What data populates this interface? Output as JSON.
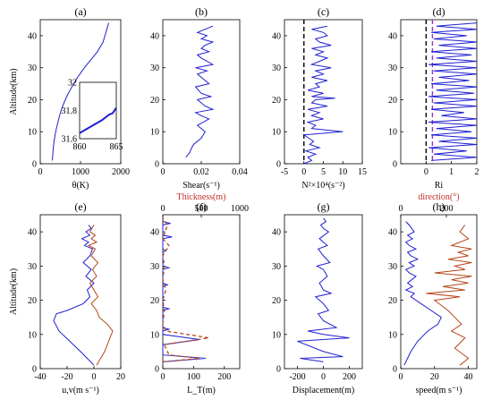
{
  "colors": {
    "blue": "#1f1fd2",
    "brown": "#b5451b",
    "red_label": "#c0302b",
    "purple": "#9b30d9",
    "black": "#000000"
  },
  "chart_data": [
    {
      "id": "a",
      "panel_label": "(a)",
      "type": "line",
      "xlabel": "θ(K)",
      "ylabel": "Altitude(km)",
      "xlim": [
        0,
        2000
      ],
      "ylim": [
        0,
        45
      ],
      "xticks": [
        "0",
        "1000",
        "2000"
      ],
      "yticks": [
        "0",
        "10",
        "20",
        "30",
        "40"
      ],
      "series": [
        {
          "x": [
            300,
            310,
            325,
            345,
            370,
            400,
            440,
            480,
            530,
            590,
            660,
            740,
            830,
            930,
            1040,
            1160,
            1290,
            1420,
            1560,
            1700
          ],
          "y": [
            1,
            3,
            5,
            7,
            9,
            11,
            13,
            15,
            17,
            19,
            21,
            23,
            25,
            27,
            29,
            31,
            33,
            35,
            38,
            44
          ]
        }
      ],
      "inset": {
        "xlim": [
          860,
          865
        ],
        "ylim": [
          31.6,
          32
        ],
        "xticks": [
          "860",
          "865"
        ],
        "yticks": [
          "31.6",
          "31.8",
          "32"
        ],
        "series": [
          {
            "x": [
              860,
              861,
              862,
              863,
              863.5,
              864,
              864.5,
              865
            ],
            "y": [
              31.64,
              31.67,
              31.7,
              31.73,
              31.75,
              31.77,
              31.78,
              31.82
            ]
          }
        ]
      }
    },
    {
      "id": "b",
      "panel_label": "(b)",
      "type": "line",
      "xlabel": "Shear(s⁻¹)",
      "ylabel": "",
      "xlim": [
        0,
        0.04
      ],
      "ylim": [
        0,
        45
      ],
      "xticks": [
        "0",
        "0.02",
        "0.04"
      ],
      "yticks": [
        "0",
        "10",
        "20",
        "30",
        "40"
      ],
      "top_xlabel": "Thickness(m)",
      "series": [
        {
          "x": [
            0.012,
            0.014,
            0.015,
            0.016,
            0.02,
            0.022,
            0.018,
            0.024,
            0.02,
            0.017,
            0.026,
            0.022,
            0.018,
            0.025,
            0.02,
            0.017,
            0.024,
            0.02,
            0.018,
            0.023,
            0.017,
            0.026,
            0.02,
            0.018,
            0.024,
            0.02,
            0.022,
            0.026,
            0.02,
            0.023,
            0.018,
            0.022,
            0.026
          ],
          "y": [
            2,
            3.5,
            5,
            6,
            8,
            10,
            12,
            14,
            15,
            16,
            17,
            18,
            20,
            21,
            22,
            24,
            25,
            27,
            28,
            29,
            30,
            31,
            33,
            34,
            35,
            36,
            37,
            38,
            39,
            40,
            41,
            42,
            43
          ]
        }
      ]
    },
    {
      "id": "c",
      "panel_label": "(c)",
      "type": "line",
      "xlabel": "N²×10⁴(s⁻²)",
      "ylabel": "",
      "xlim": [
        -5,
        15
      ],
      "ylim": [
        0,
        45
      ],
      "xticks": [
        "-5",
        "0",
        "5",
        "10",
        "15"
      ],
      "yticks": [
        "0",
        "10",
        "20",
        "30",
        "40"
      ],
      "reference_line_x": 0,
      "series": [
        {
          "x": [
            0,
            2,
            1,
            3,
            0.5,
            4,
            1.5,
            2.5,
            0,
            10,
            2,
            3,
            1,
            5,
            2,
            4,
            1,
            6,
            2,
            3,
            8,
            2,
            5,
            1,
            4,
            3,
            6,
            2,
            5,
            3,
            7,
            2,
            4,
            6,
            3,
            5,
            2,
            7,
            4,
            3,
            6,
            5,
            2,
            6
          ],
          "y": [
            0,
            1,
            2,
            3,
            4,
            5,
            6,
            7,
            9,
            10,
            11,
            12,
            13,
            14,
            15,
            16,
            17,
            18,
            19,
            20,
            20.5,
            21,
            22,
            23,
            24,
            25,
            26,
            27,
            28,
            29,
            30,
            31,
            32,
            33,
            34,
            35,
            36,
            37,
            38,
            39,
            40,
            41,
            42,
            43
          ]
        }
      ]
    },
    {
      "id": "d",
      "panel_label": "(d)",
      "type": "line",
      "xlabel": "Ri",
      "ylabel": "",
      "xlim": [
        -1,
        2
      ],
      "ylim": [
        0,
        45
      ],
      "xticks": [
        "0",
        "1",
        "2"
      ],
      "yticks": [
        "0",
        "10",
        "20",
        "30",
        "40"
      ],
      "top_xlabel": "direction(°)",
      "reference_lines_x": [
        0,
        0.25
      ],
      "series": [
        {
          "x": [
            0.2,
            2,
            0.3,
            1.6,
            0.1,
            2,
            0.5,
            2,
            0.2,
            1.8,
            0.4,
            2,
            0.1,
            2,
            0.6,
            1.5,
            0.2,
            2,
            0.3,
            2,
            0.1,
            1.9,
            0.4,
            2,
            0.2,
            1.7,
            0.5,
            2,
            0.3,
            2,
            0.1,
            2,
            0.4,
            1.8,
            0.2,
            2,
            0.5,
            2,
            0.3,
            1.6,
            0.2,
            2,
            0.4,
            2
          ],
          "y": [
            1,
            2,
            3,
            4,
            5,
            6,
            7,
            8,
            9,
            10,
            11,
            12,
            13,
            14,
            15,
            16,
            17,
            18,
            19,
            20,
            21,
            22,
            23,
            24,
            25,
            26,
            27,
            28,
            29,
            30,
            31,
            32,
            33,
            34,
            35,
            36,
            37,
            38,
            39,
            40,
            41,
            42,
            43,
            44
          ]
        }
      ]
    },
    {
      "id": "e",
      "panel_label": "(e)",
      "type": "line",
      "xlabel": "u,v(m s⁻¹)",
      "ylabel": "Altitude(km)",
      "xlim": [
        -40,
        20
      ],
      "ylim": [
        0,
        45
      ],
      "xticks": [
        "-40",
        "-20",
        "0",
        "20"
      ],
      "yticks": [
        "0",
        "10",
        "20",
        "30",
        "40"
      ],
      "series": [
        {
          "name": "u",
          "x": [
            0,
            -5,
            -10,
            -18,
            -26,
            -30,
            -28,
            -20,
            -8,
            -3,
            -5,
            0,
            -6,
            -2,
            -8,
            -3,
            -1,
            -7,
            -4,
            -9,
            -3,
            -6,
            -2,
            -4
          ],
          "y": [
            1,
            3,
            5,
            8,
            11,
            14,
            16,
            17,
            19,
            21,
            23,
            25,
            27,
            29,
            31,
            33,
            35,
            36,
            37,
            38,
            39,
            40,
            41,
            42
          ]
        },
        {
          "name": "v",
          "x": [
            2,
            5,
            8,
            10,
            12,
            14,
            10,
            4,
            2,
            -2,
            3,
            0,
            -3,
            2,
            -1,
            3,
            -2,
            1,
            -4,
            2,
            -2,
            1,
            -3,
            0
          ],
          "y": [
            1,
            3,
            5,
            7,
            9,
            11,
            13,
            15,
            17,
            19,
            21,
            23,
            25,
            27,
            29,
            31,
            33,
            35,
            36,
            37,
            38,
            39,
            40,
            42
          ]
        }
      ]
    },
    {
      "id": "f",
      "panel_label": "(f)",
      "type": "line",
      "xlabel": "L_T(m)",
      "ylabel": "",
      "xlim": [
        0,
        250
      ],
      "ylim": [
        0,
        45
      ],
      "xticks": [
        "0",
        "100",
        "200"
      ],
      "yticks": [
        "0",
        "10",
        "20",
        "30",
        "40"
      ],
      "top_xticks": [
        "0",
        "500",
        "1000"
      ],
      "series": [
        {
          "name": "L_T",
          "x": [
            0,
            140,
            0,
            0,
            120,
            0,
            0,
            20,
            0,
            0,
            20,
            0,
            0,
            15,
            0,
            0,
            20,
            0,
            0,
            10,
            0,
            0,
            30,
            0,
            0,
            25,
            0
          ],
          "y": [
            2,
            3,
            4,
            7,
            8.5,
            10,
            11,
            11.5,
            12,
            17,
            17.5,
            18,
            24,
            24.5,
            25,
            29,
            29.5,
            30,
            34,
            34.5,
            35,
            38,
            38.5,
            39,
            42,
            42.5,
            43
          ]
        },
        {
          "name": "Thickness",
          "x": [
            0,
            120,
            20,
            5,
            150,
            10,
            0,
            5,
            0,
            10,
            0,
            5,
            0,
            20,
            0,
            15,
            0
          ],
          "y": [
            2,
            3,
            4,
            7,
            9,
            11,
            13,
            17,
            20,
            23,
            26,
            30,
            33,
            36,
            38,
            42,
            44
          ]
        }
      ]
    },
    {
      "id": "g",
      "panel_label": "(g)",
      "type": "line",
      "xlabel": "Displacement(m)",
      "ylabel": "",
      "xlim": [
        -300,
        300
      ],
      "ylim": [
        0,
        45
      ],
      "xticks": [
        "-200",
        "0",
        "200"
      ],
      "yticks": [
        "0",
        "10",
        "20",
        "30",
        "40"
      ],
      "series": [
        {
          "x": [
            0,
            -180,
            150,
            0,
            -200,
            200,
            0,
            -120,
            100,
            0,
            -40,
            40,
            0,
            -60,
            60,
            0,
            -30,
            30,
            0,
            -50,
            50,
            0,
            -40,
            30,
            0,
            -30,
            40,
            0,
            -20,
            20,
            0
          ],
          "y": [
            2,
            3,
            3.5,
            5,
            8,
            9,
            10,
            11,
            12,
            14,
            16,
            17,
            19,
            21,
            22,
            23,
            25,
            27,
            29,
            30,
            31,
            33,
            35,
            36,
            37,
            38,
            40,
            41,
            42,
            43,
            44
          ]
        }
      ]
    },
    {
      "id": "h",
      "panel_label": "(h)",
      "type": "line",
      "xlabel": "speed(m s⁻¹)",
      "ylabel": "",
      "xlim": [
        0,
        45
      ],
      "ylim": [
        0,
        45
      ],
      "xticks": [
        "0",
        "20",
        "40"
      ],
      "yticks": [
        "0",
        "10",
        "20",
        "30",
        "40"
      ],
      "top_xticks": [
        "0",
        "200"
      ],
      "series": [
        {
          "name": "speed",
          "x": [
            2,
            4,
            6,
            10,
            16,
            22,
            24,
            18,
            12,
            6,
            8,
            3,
            7,
            4,
            9,
            5,
            3,
            8,
            5,
            10,
            6,
            4,
            9,
            5,
            3,
            7,
            4,
            8,
            5,
            3
          ],
          "y": [
            1,
            3,
            5,
            8,
            11,
            13,
            15,
            17,
            19,
            21,
            22,
            23,
            24,
            25,
            27,
            28,
            29,
            30,
            31,
            32,
            33,
            34,
            35,
            36,
            37,
            38,
            39,
            40,
            42,
            43
          ]
        },
        {
          "name": "direction",
          "x": [
            35,
            40,
            32,
            38,
            30,
            36,
            32,
            28,
            20,
            35,
            15,
            38,
            25,
            40,
            30,
            42,
            20,
            38,
            32,
            42,
            28,
            40,
            34,
            42,
            30,
            40,
            35,
            38
          ],
          "y": [
            1,
            3,
            6,
            9,
            11,
            13,
            15,
            17,
            20,
            21,
            22,
            23,
            24,
            25,
            26,
            27,
            28,
            29,
            30,
            31,
            32,
            33,
            34,
            35,
            36,
            38,
            40,
            42
          ]
        }
      ]
    }
  ]
}
